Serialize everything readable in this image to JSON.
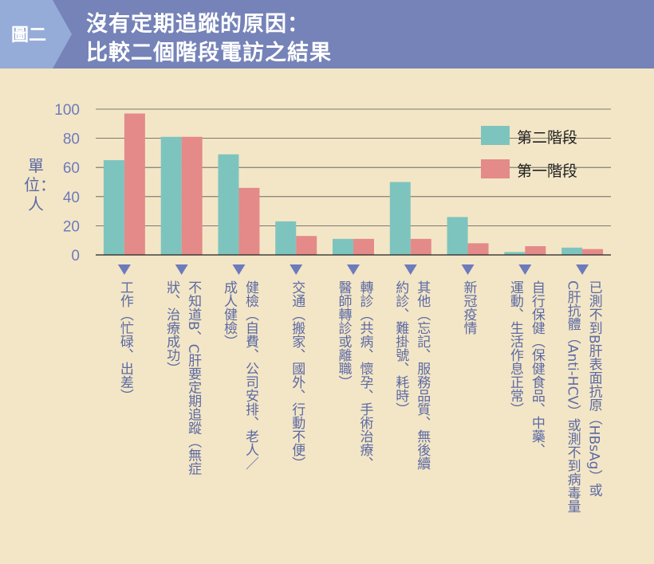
{
  "header": {
    "tag": "圖二",
    "title_line1": "沒有定期追蹤的原因：",
    "title_line2": "比較二個階段電訪之結果"
  },
  "y_unit_label": "單位：人",
  "colors": {
    "phase2": "#7ec4be",
    "phase1": "#e48a89",
    "marker": "#6d7bbd",
    "axis": "#222222",
    "grid": "#555555"
  },
  "chart_data": {
    "type": "bar",
    "ylabel": "單位：人",
    "ylim": [
      0,
      100
    ],
    "yticks": [
      0,
      20,
      40,
      60,
      80,
      100
    ],
    "grid": true,
    "legend_position": "top-right",
    "categories": [
      "工作（忙碌、出差）",
      "不知道B、C肝要定期追蹤（無症狀、治療成功）",
      "健檢（自費、公司安排、老人／成人健檢）",
      "交通（搬家、國外、行動不便）",
      "轉診（共病、懷孕、手術治療、醫師轉診或離職）",
      "其他（忘記、服務品質、無後續約診、難掛號、耗時）",
      "新冠疫情",
      "自行保健（保健食品、中藥、運動、生活作息正常）",
      "已測不到B肝表面抗原（HBsAg）或C肝抗體（Anti-HCV）或測不到病毒量"
    ],
    "category_lines": [
      [
        "工作（忙碌、出差）"
      ],
      [
        "不知道B、C肝要定期追蹤（無症",
        "狀、治療成功）"
      ],
      [
        "健檢（自費、公司安排、老人／",
        "成人健檢）"
      ],
      [
        "交通（搬家、國外、行動不便）"
      ],
      [
        "轉診（共病、懷孕、手術治療、",
        "醫師轉診或離職）"
      ],
      [
        "其他（忘記、服務品質、無後續",
        "約診、難掛號、耗時）"
      ],
      [
        "新冠疫情"
      ],
      [
        "自行保健（保健食品、中藥、",
        "運動、生活作息正常）"
      ],
      [
        "已測不到B肝表面抗原（HBsAg）或",
        "C肝抗體（Anti-HCV）或測不到病毒量"
      ]
    ],
    "series": [
      {
        "name": "第二階段",
        "values": [
          65,
          81,
          69,
          23,
          11,
          50,
          26,
          2,
          5
        ]
      },
      {
        "name": "第一階段",
        "values": [
          97,
          81,
          46,
          13,
          11,
          11,
          8,
          6,
          4
        ]
      }
    ]
  }
}
